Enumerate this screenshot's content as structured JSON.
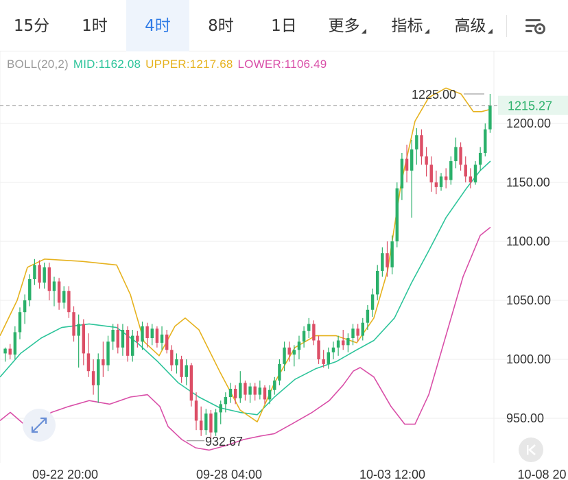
{
  "tabs": [
    {
      "label": "15分",
      "active": false,
      "dropdown": false
    },
    {
      "label": "1时",
      "active": false,
      "dropdown": false
    },
    {
      "label": "4时",
      "active": true,
      "dropdown": false
    },
    {
      "label": "8时",
      "active": false,
      "dropdown": false
    },
    {
      "label": "1日",
      "active": false,
      "dropdown": false
    },
    {
      "label": "更多",
      "active": false,
      "dropdown": true
    },
    {
      "label": "指标",
      "active": false,
      "dropdown": true
    },
    {
      "label": "高级",
      "active": false,
      "dropdown": true
    }
  ],
  "settings_icon": "chart-settings-icon",
  "indicator": {
    "name": "BOLL(20,2)",
    "mid": "MID:1162.08",
    "upper": "UPPER:1217.68",
    "lower": "LOWER:1106.49",
    "colors": {
      "name": "#9a9a9a",
      "mid": "#2cc49a",
      "upper": "#e6b21e",
      "lower": "#d94fa8"
    }
  },
  "colors": {
    "up": "#2ab06a",
    "down": "#dc4e66",
    "grid": "#eeeeee",
    "axis_text": "#333333",
    "current_price_bg": "#e7f6ee",
    "current_price_text": "#2ab06a"
  },
  "chart_data": {
    "type": "candlestick",
    "y_ticks": [
      "1200.00",
      "1150.00",
      "1100.00",
      "1050.00",
      "1000.00",
      "950.00"
    ],
    "y_tick_values": [
      1200,
      1150,
      1100,
      1050,
      1000,
      950
    ],
    "x_ticks": [
      "09-22 20:00",
      "09-28 04:00",
      "10-03 12:00",
      "10-08 20"
    ],
    "ylim": [
      924,
      1244
    ],
    "current_price": "1215.27",
    "current_price_value": 1215.27,
    "high_label": "1225.00",
    "high_value": 1225.0,
    "low_label": "932.67",
    "low_value": 932.67,
    "candles": [
      [
        1005,
        1010,
        998,
        1009
      ],
      [
        1009,
        1013,
        1000,
        1004
      ],
      [
        1004,
        1028,
        1000,
        1023
      ],
      [
        1023,
        1044,
        1017,
        1040
      ],
      [
        1040,
        1055,
        1030,
        1050
      ],
      [
        1050,
        1072,
        1045,
        1068
      ],
      [
        1068,
        1085,
        1063,
        1080
      ],
      [
        1080,
        1084,
        1060,
        1065
      ],
      [
        1065,
        1082,
        1060,
        1078
      ],
      [
        1078,
        1082,
        1050,
        1058
      ],
      [
        1058,
        1070,
        1045,
        1066
      ],
      [
        1066,
        1069,
        1042,
        1048
      ],
      [
        1048,
        1062,
        1043,
        1058
      ],
      [
        1058,
        1062,
        1035,
        1040
      ],
      [
        1040,
        1045,
        1015,
        1020
      ],
      [
        1020,
        1038,
        993,
        1030
      ],
      [
        1030,
        1034,
        995,
        1005
      ],
      [
        1005,
        1022,
        985,
        990
      ],
      [
        990,
        1000,
        970,
        978
      ],
      [
        978,
        1005,
        963,
        1000
      ],
      [
        1000,
        1015,
        985,
        995
      ],
      [
        995,
        1020,
        990,
        1015
      ],
      [
        1015,
        1030,
        1008,
        1025
      ],
      [
        1025,
        1030,
        1005,
        1010
      ],
      [
        1010,
        1030,
        1003,
        1025
      ],
      [
        1025,
        1028,
        998,
        1003
      ],
      [
        1003,
        1025,
        998,
        1020
      ],
      [
        1020,
        1024,
        1010,
        1015
      ],
      [
        1015,
        1032,
        1008,
        1028
      ],
      [
        1028,
        1031,
        1010,
        1018
      ],
      [
        1018,
        1030,
        1012,
        1026
      ],
      [
        1026,
        1028,
        1010,
        1014
      ],
      [
        1014,
        1028,
        1008,
        1021
      ],
      [
        1021,
        1025,
        1005,
        1008
      ],
      [
        1008,
        1012,
        990,
        995
      ],
      [
        995,
        1005,
        988,
        1000
      ],
      [
        1000,
        1003,
        980,
        985
      ],
      [
        985,
        1000,
        978,
        995
      ],
      [
        995,
        997,
        960,
        965
      ],
      [
        965,
        972,
        940,
        948
      ],
      [
        948,
        960,
        935,
        940
      ],
      [
        940,
        958,
        936,
        954
      ],
      [
        954,
        957,
        932.67,
        938
      ],
      [
        938,
        958,
        935,
        955
      ],
      [
        955,
        965,
        945,
        962
      ],
      [
        962,
        972,
        955,
        968
      ],
      [
        968,
        980,
        963,
        975
      ],
      [
        975,
        978,
        962,
        967
      ],
      [
        967,
        990,
        963,
        980
      ],
      [
        980,
        982,
        965,
        970
      ],
      [
        970,
        980,
        963,
        977
      ],
      [
        977,
        980,
        965,
        970
      ],
      [
        970,
        982,
        966,
        976
      ],
      [
        976,
        978,
        962,
        966
      ],
      [
        966,
        978,
        962,
        974
      ],
      [
        974,
        985,
        970,
        982
      ],
      [
        982,
        1000,
        978,
        996
      ],
      [
        996,
        1015,
        990,
        1010
      ],
      [
        1010,
        1015,
        998,
        1004
      ],
      [
        1004,
        1012,
        994,
        1008
      ],
      [
        1008,
        1020,
        1000,
        1015
      ],
      [
        1015,
        1028,
        1010,
        1024
      ],
      [
        1024,
        1035,
        1018,
        1030
      ],
      [
        1030,
        1033,
        1012,
        1016
      ],
      [
        1016,
        1020,
        996,
        1000
      ],
      [
        1000,
        1008,
        993,
        996
      ],
      [
        996,
        1010,
        992,
        1006
      ],
      [
        1006,
        1015,
        1000,
        1010
      ],
      [
        1010,
        1020,
        1003,
        1016
      ],
      [
        1016,
        1025,
        1008,
        1012
      ],
      [
        1012,
        1022,
        1006,
        1018
      ],
      [
        1018,
        1030,
        1012,
        1026
      ],
      [
        1026,
        1030,
        1015,
        1020
      ],
      [
        1020,
        1035,
        1016,
        1031
      ],
      [
        1031,
        1046,
        1025,
        1042
      ],
      [
        1042,
        1060,
        1036,
        1055
      ],
      [
        1055,
        1080,
        1050,
        1075
      ],
      [
        1075,
        1095,
        1070,
        1090
      ],
      [
        1090,
        1100,
        1070,
        1078
      ],
      [
        1078,
        1105,
        1072,
        1100
      ],
      [
        1100,
        1150,
        1095,
        1145
      ],
      [
        1145,
        1175,
        1135,
        1170
      ],
      [
        1170,
        1182,
        1150,
        1160
      ],
      [
        1160,
        1186,
        1120,
        1178
      ],
      [
        1178,
        1196,
        1165,
        1190
      ],
      [
        1190,
        1195,
        1165,
        1172
      ],
      [
        1172,
        1180,
        1155,
        1165
      ],
      [
        1165,
        1172,
        1142,
        1150
      ],
      [
        1150,
        1160,
        1140,
        1146
      ],
      [
        1146,
        1158,
        1143,
        1155
      ],
      [
        1155,
        1162,
        1145,
        1152
      ],
      [
        1152,
        1172,
        1148,
        1168
      ],
      [
        1168,
        1188,
        1162,
        1180
      ],
      [
        1180,
        1184,
        1160,
        1165
      ],
      [
        1165,
        1172,
        1150,
        1155
      ],
      [
        1155,
        1162,
        1145,
        1150
      ],
      [
        1150,
        1168,
        1148,
        1165
      ],
      [
        1165,
        1180,
        1160,
        1175
      ],
      [
        1175,
        1200,
        1172,
        1195
      ],
      [
        1195,
        1225,
        1192,
        1215.27
      ]
    ],
    "boll": {
      "upper": [
        [
          0,
          1020
        ],
        [
          25,
          1050
        ],
        [
          40,
          1078
        ],
        [
          65,
          1085
        ],
        [
          120,
          1083
        ],
        [
          170,
          1080
        ],
        [
          190,
          1055
        ],
        [
          210,
          1015
        ],
        [
          232,
          1003
        ],
        [
          255,
          1028
        ],
        [
          270,
          1035
        ],
        [
          290,
          1025
        ],
        [
          320,
          990
        ],
        [
          350,
          957
        ],
        [
          375,
          947
        ],
        [
          400,
          980
        ],
        [
          430,
          1010
        ],
        [
          460,
          1020
        ],
        [
          490,
          1020
        ],
        [
          520,
          1014
        ],
        [
          545,
          1035
        ],
        [
          565,
          1075
        ],
        [
          585,
          1150
        ],
        [
          605,
          1202
        ],
        [
          625,
          1222
        ],
        [
          650,
          1230
        ],
        [
          672,
          1225
        ],
        [
          690,
          1210
        ],
        [
          702,
          1210
        ],
        [
          715,
          1212
        ]
      ],
      "mid": [
        [
          0,
          985
        ],
        [
          30,
          1005
        ],
        [
          60,
          1018
        ],
        [
          90,
          1027
        ],
        [
          130,
          1030
        ],
        [
          170,
          1027
        ],
        [
          200,
          1014
        ],
        [
          230,
          998
        ],
        [
          260,
          980
        ],
        [
          290,
          968
        ],
        [
          320,
          959
        ],
        [
          350,
          955
        ],
        [
          375,
          953
        ],
        [
          400,
          968
        ],
        [
          430,
          983
        ],
        [
          460,
          992
        ],
        [
          490,
          998
        ],
        [
          520,
          1008
        ],
        [
          545,
          1016
        ],
        [
          575,
          1035
        ],
        [
          600,
          1065
        ],
        [
          625,
          1092
        ],
        [
          650,
          1120
        ],
        [
          680,
          1145
        ],
        [
          700,
          1160
        ],
        [
          715,
          1168
        ]
      ],
      "lower": [
        [
          0,
          948
        ],
        [
          15,
          955
        ],
        [
          35,
          945
        ],
        [
          50,
          946
        ],
        [
          75,
          955
        ],
        [
          100,
          960
        ],
        [
          130,
          965
        ],
        [
          160,
          962
        ],
        [
          190,
          968
        ],
        [
          215,
          970
        ],
        [
          233,
          960
        ],
        [
          245,
          943
        ],
        [
          265,
          932
        ],
        [
          285,
          925
        ],
        [
          305,
          923
        ],
        [
          330,
          927
        ],
        [
          355,
          932
        ],
        [
          380,
          935
        ],
        [
          400,
          937
        ],
        [
          425,
          945
        ],
        [
          455,
          955
        ],
        [
          480,
          965
        ],
        [
          500,
          978
        ],
        [
          515,
          990
        ],
        [
          525,
          993
        ],
        [
          545,
          985
        ],
        [
          570,
          960
        ],
        [
          590,
          945
        ],
        [
          605,
          945
        ],
        [
          625,
          970
        ],
        [
          650,
          1020
        ],
        [
          675,
          1070
        ],
        [
          700,
          1105
        ],
        [
          715,
          1112
        ]
      ]
    }
  }
}
